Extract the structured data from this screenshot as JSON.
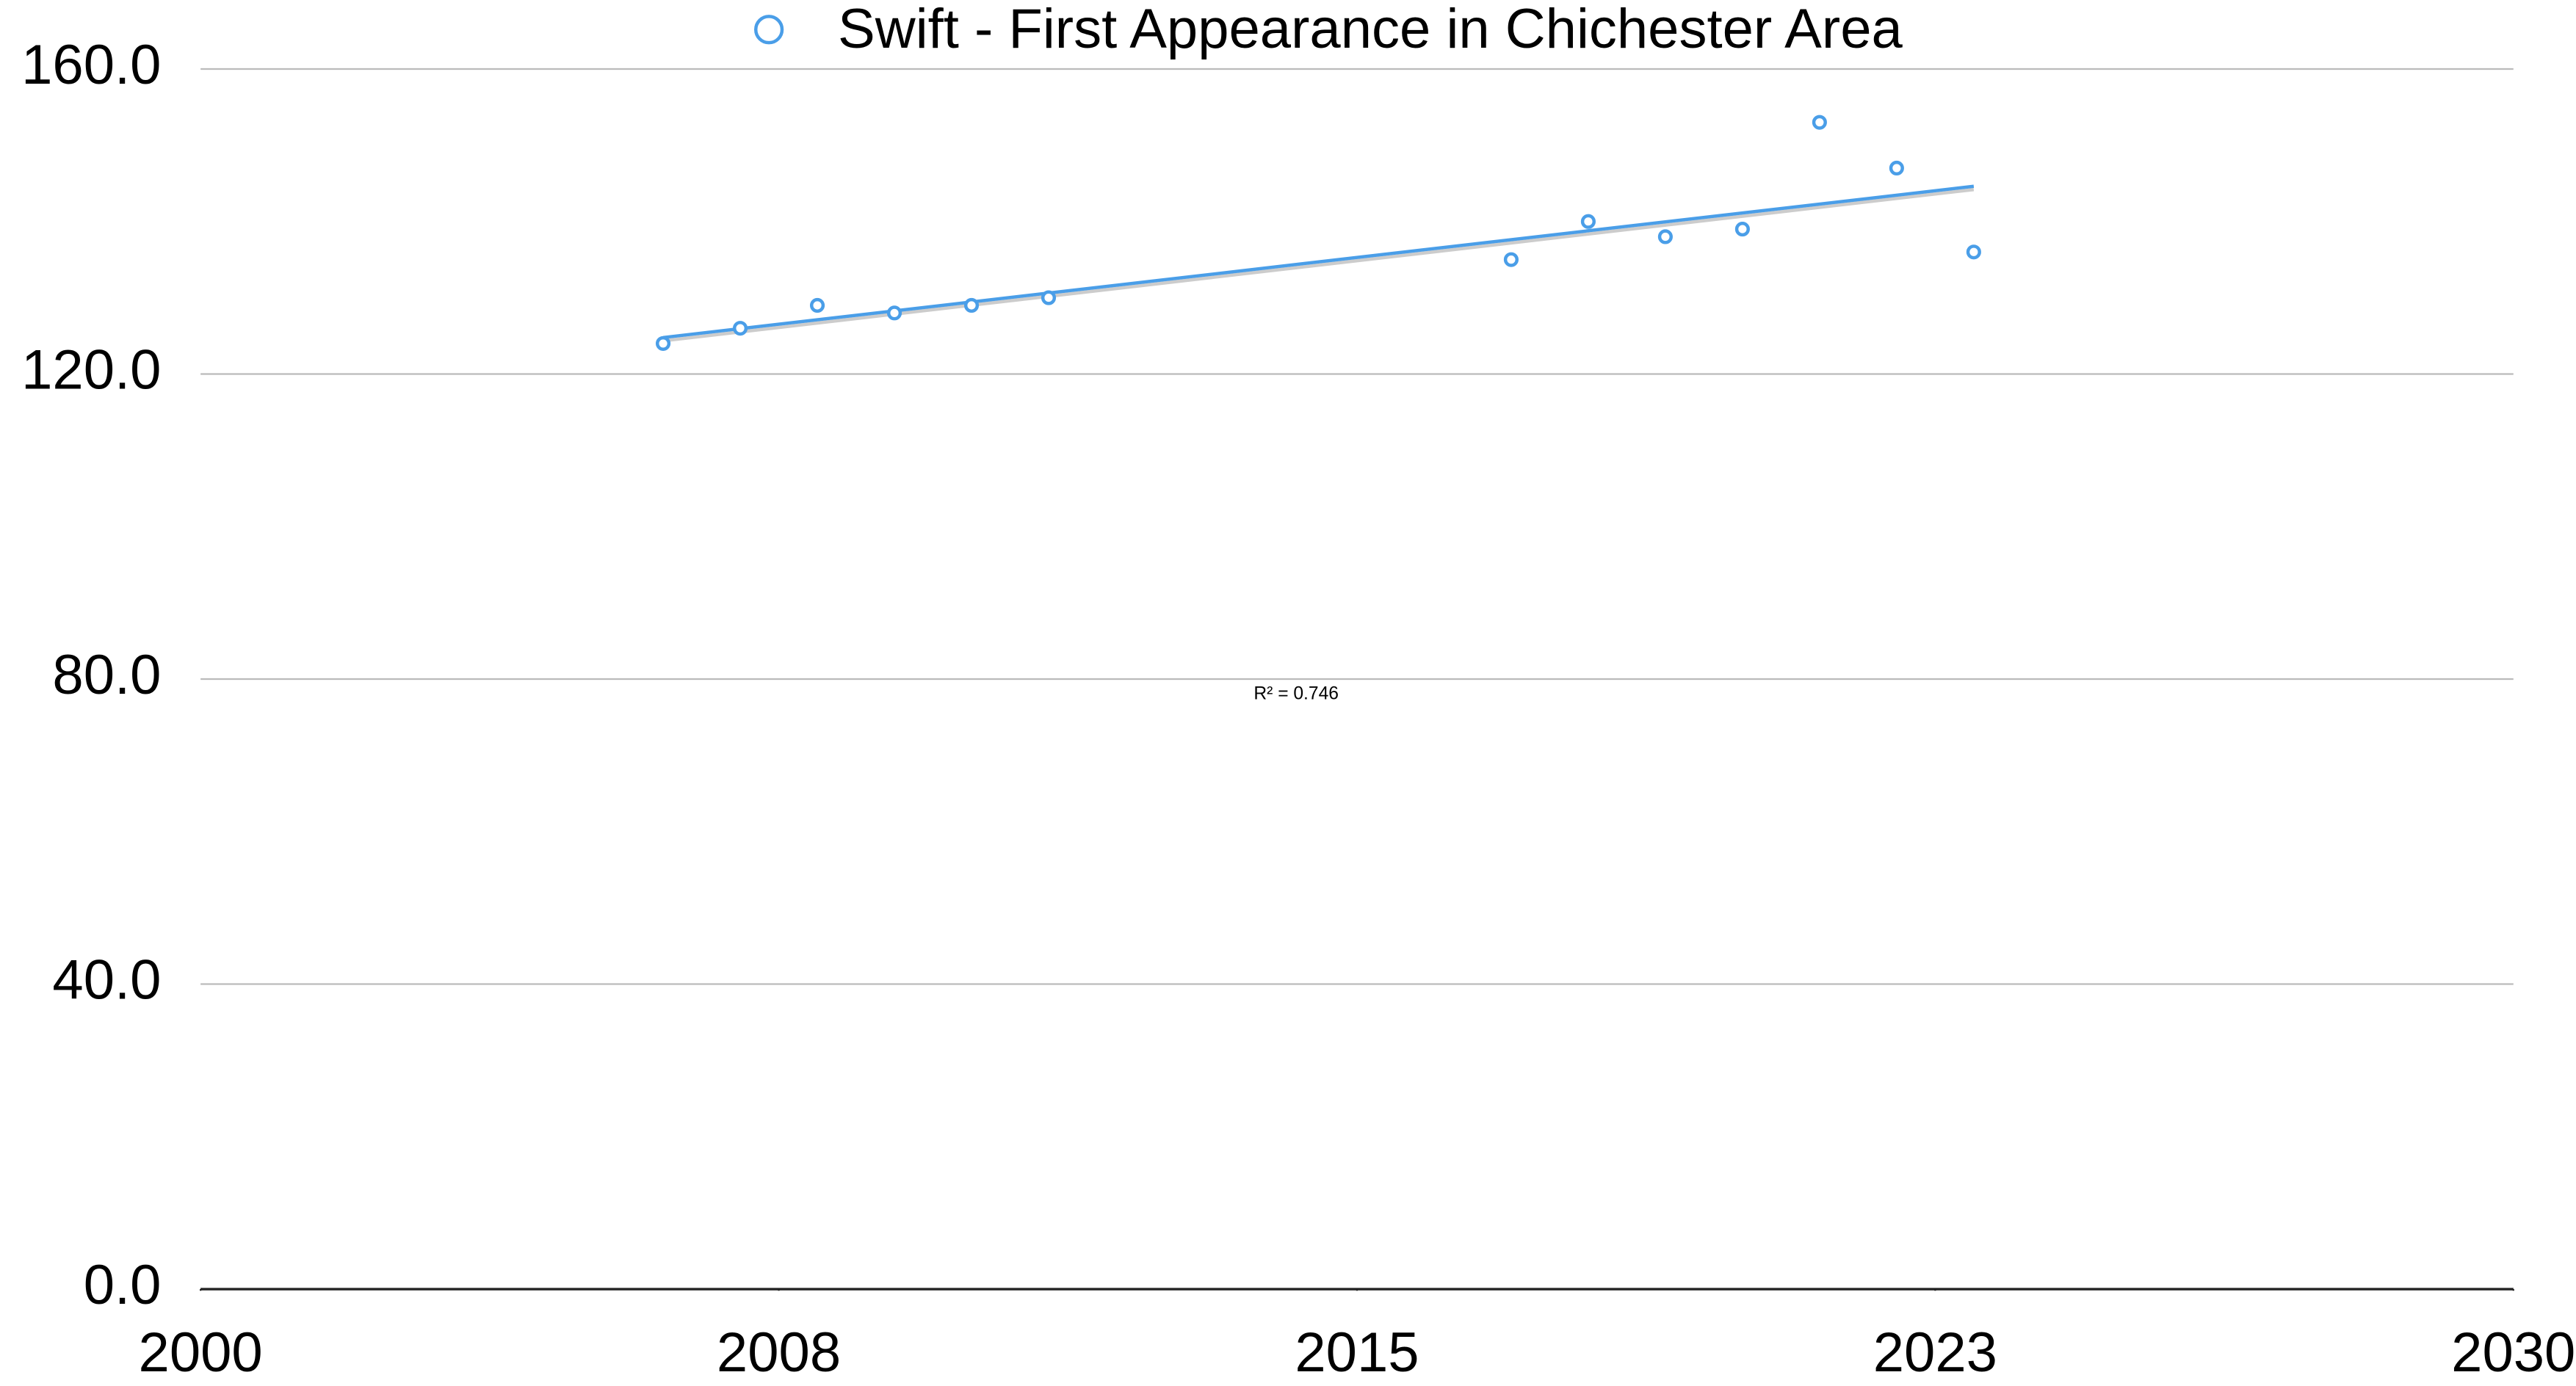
{
  "chart_data": {
    "type": "scatter",
    "series": [
      {
        "name": "Swift - First Appearance in Chichester Area",
        "color": "#4a9ee8",
        "x": [
          2006,
          2007,
          2008,
          2009,
          2010,
          2011,
          2017,
          2018,
          2019,
          2020,
          2021,
          2022,
          2023
        ],
        "values": [
          124,
          126,
          129,
          128,
          129,
          130,
          135,
          140,
          138,
          139,
          153,
          147,
          136
        ]
      }
    ],
    "trendline": true,
    "annotations": [
      "R² = 0.746"
    ],
    "xlim": [
      2000,
      2030
    ],
    "xticks": [
      2000,
      {
        "value": 2007.5,
        "label": "2008"
      },
      2015,
      {
        "value": 2022.5,
        "label": "2023"
      },
      2030
    ],
    "ylim": [
      0,
      160
    ],
    "yticks": [
      {
        "value": 0,
        "label": "0.0"
      },
      {
        "value": 40,
        "label": "40.0"
      },
      {
        "value": 80,
        "label": "80.0"
      },
      {
        "value": 120,
        "label": "120.0"
      },
      {
        "value": 160,
        "label": "160.0"
      }
    ],
    "grid": true
  }
}
